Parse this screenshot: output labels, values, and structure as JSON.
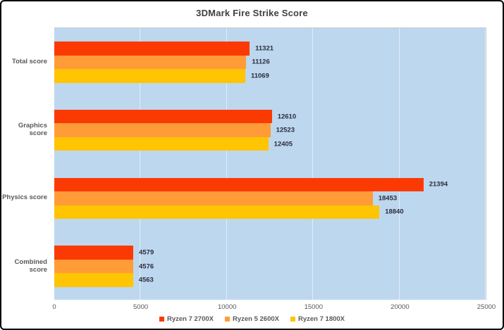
{
  "title": "3DMark Fire Strike Score",
  "chart_data": {
    "type": "bar",
    "orientation": "horizontal",
    "title": "3DMark Fire Strike Score",
    "categories": [
      "Total score",
      "Graphics score",
      "Physics score",
      "Combined score"
    ],
    "series": [
      {
        "name": "Ryzen 7 2700X",
        "color": "#fb3a03",
        "values": [
          11321,
          12610,
          21394,
          4579
        ]
      },
      {
        "name": "Ryzen 5 2600X",
        "color": "#ff9c38",
        "values": [
          11126,
          12523,
          18453,
          4576
        ]
      },
      {
        "name": "Ryzen 7 1800X",
        "color": "#ffc402",
        "values": [
          11069,
          12405,
          18840,
          4563
        ]
      }
    ],
    "x_axis": {
      "min": 0,
      "max": 25000,
      "tick_interval": 5000,
      "ticks": [
        "0",
        "5000",
        "10000",
        "15000",
        "20000",
        "25000"
      ]
    },
    "data_labels": true,
    "gridlines": true,
    "legend_position": "bottom",
    "plot_background_color": "#bdd7ee",
    "title_color": "#404040",
    "axis_text_color": "#595959"
  }
}
